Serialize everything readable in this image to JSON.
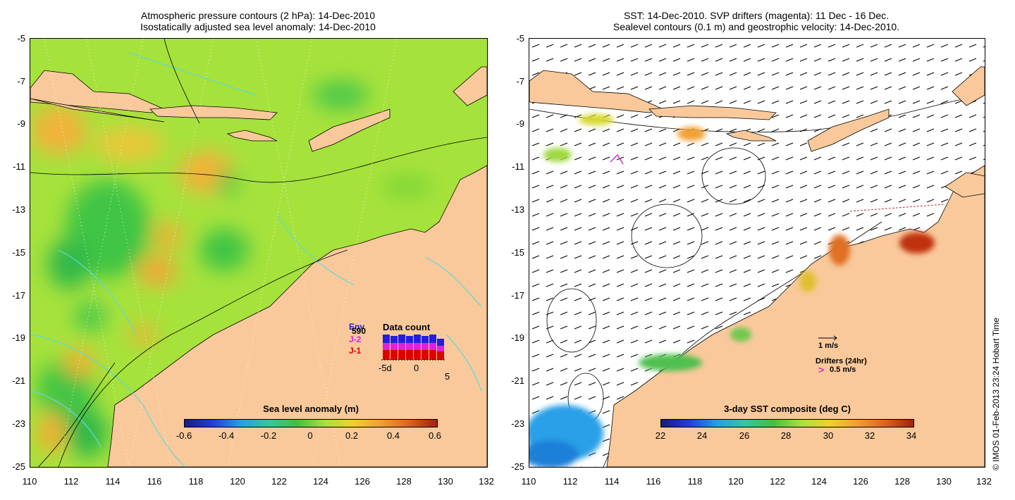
{
  "left_panel": {
    "title_line1": "Atmospheric pressure contours (2 hPa): 14-Dec-2010",
    "title_line2": "Isostatically adjusted sea level anomaly: 14-Dec-2010",
    "y_ticks": [
      "-5",
      "-7",
      "-9",
      "-11",
      "-13",
      "-15",
      "-17",
      "-19",
      "-21",
      "-23",
      "-25"
    ],
    "x_ticks": [
      "110",
      "112",
      "114",
      "116",
      "118",
      "120",
      "122",
      "124",
      "126",
      "128",
      "130",
      "132"
    ],
    "colorbar_title": "Sea level anomaly (m)",
    "colorbar_ticks": [
      "-0.6",
      "-0.4",
      "-0.2",
      "0",
      "0.2",
      "0.4",
      "0.6"
    ],
    "inset": {
      "title": "Data count",
      "count_label": "590",
      "legend": [
        {
          "label": "Env",
          "color": "#2020e0"
        },
        {
          "label": "J-2",
          "color": "#e020e0"
        },
        {
          "label": "J-1",
          "color": "#e00000"
        }
      ],
      "x_ticks": [
        "-5d",
        "0",
        "5"
      ]
    }
  },
  "right_panel": {
    "title_line1": "SST: 14-Dec-2010. SVP drifters (magenta): 11 Dec - 16 Dec.",
    "title_line2": "Sealevel contours (0.1 m) and geostrophic velocity: 14-Dec-2010.",
    "y_ticks": [
      "-5",
      "-7",
      "-9",
      "-11",
      "-13",
      "-15",
      "-17",
      "-19",
      "-21",
      "-23",
      "-25"
    ],
    "x_ticks": [
      "110",
      "112",
      "114",
      "116",
      "118",
      "120",
      "122",
      "124",
      "126",
      "128",
      "130",
      "132"
    ],
    "colorbar_title": "3-day SST composite (deg C)",
    "colorbar_ticks": [
      "22",
      "24",
      "26",
      "28",
      "30",
      "32",
      "34"
    ],
    "velocity_scale": "1 m/s",
    "drifters_title": "Drifters (24hr)",
    "drifters_scale": "0.5 m/s"
  },
  "credit": "© IMOS 01-Feb-2013 23:24 Hobart Time",
  "colors": {
    "land": "#f9c99b",
    "sea_base": "#a8e63a",
    "sea_green": "#4cc84a",
    "sea_orange": "#f5b428",
    "coast_contour": "#5fd9d9"
  }
}
